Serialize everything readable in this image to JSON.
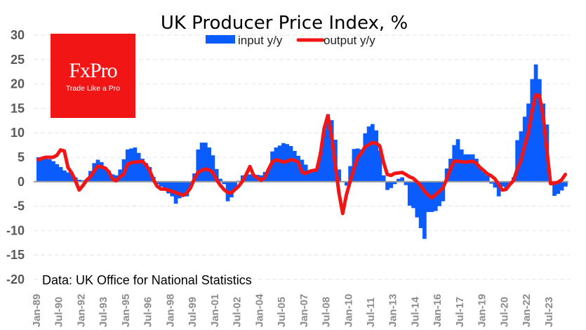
{
  "chart_data": {
    "type": "bar+line",
    "title": "UK Producer Price Index, %",
    "source_note": "Data: UK Office for National Statistics",
    "ylim": [
      -20,
      30
    ],
    "yticks": [
      30,
      25,
      20,
      15,
      10,
      5,
      0,
      -5,
      -10,
      -15,
      -20
    ],
    "xtick_labels": [
      "Jan-89",
      "Jul-90",
      "Jan-92",
      "Jul-93",
      "Jan-95",
      "Jul-96",
      "Jan-98",
      "Jul-99",
      "Jan-01",
      "Jul-02",
      "Jan-04",
      "Jul-05",
      "Jan-07",
      "Jul-08",
      "Jan-10",
      "Jul-11",
      "Jan-13",
      "Jul-14",
      "Jan-16",
      "Jul-17",
      "Jan-19",
      "Jul-20",
      "Jan-22",
      "Jul-23"
    ],
    "grid": true,
    "legend_position": "top-center",
    "x": [
      "1989Q1",
      "1989Q2",
      "1989Q3",
      "1989Q4",
      "1990Q1",
      "1990Q2",
      "1990Q3",
      "1990Q4",
      "1991Q1",
      "1991Q2",
      "1991Q3",
      "1991Q4",
      "1992Q1",
      "1992Q2",
      "1992Q3",
      "1992Q4",
      "1993Q1",
      "1993Q2",
      "1993Q3",
      "1993Q4",
      "1994Q1",
      "1994Q2",
      "1994Q3",
      "1994Q4",
      "1995Q1",
      "1995Q2",
      "1995Q3",
      "1995Q4",
      "1996Q1",
      "1996Q2",
      "1996Q3",
      "1996Q4",
      "1997Q1",
      "1997Q2",
      "1997Q3",
      "1997Q4",
      "1998Q1",
      "1998Q2",
      "1998Q3",
      "1998Q4",
      "1999Q1",
      "1999Q2",
      "1999Q3",
      "1999Q4",
      "2000Q1",
      "2000Q2",
      "2000Q3",
      "2000Q4",
      "2001Q1",
      "2001Q2",
      "2001Q3",
      "2001Q4",
      "2002Q1",
      "2002Q2",
      "2002Q3",
      "2002Q4",
      "2003Q1",
      "2003Q2",
      "2003Q3",
      "2003Q4",
      "2004Q1",
      "2004Q2",
      "2004Q3",
      "2004Q4",
      "2005Q1",
      "2005Q2",
      "2005Q3",
      "2005Q4",
      "2006Q1",
      "2006Q2",
      "2006Q3",
      "2006Q4",
      "2007Q1",
      "2007Q2",
      "2007Q3",
      "2007Q4",
      "2008Q1",
      "2008Q2",
      "2008Q3",
      "2008Q4",
      "2009Q1",
      "2009Q2",
      "2009Q3",
      "2009Q4",
      "2010Q1",
      "2010Q2",
      "2010Q3",
      "2010Q4",
      "2011Q1",
      "2011Q2",
      "2011Q3",
      "2011Q4",
      "2012Q1",
      "2012Q2",
      "2012Q3",
      "2012Q4",
      "2013Q1",
      "2013Q2",
      "2013Q3",
      "2013Q4",
      "2014Q1",
      "2014Q2",
      "2014Q3",
      "2014Q4",
      "2015Q1",
      "2015Q2",
      "2015Q3",
      "2015Q4",
      "2016Q1",
      "2016Q2",
      "2016Q3",
      "2016Q4",
      "2017Q1",
      "2017Q2",
      "2017Q3",
      "2017Q4",
      "2018Q1",
      "2018Q2",
      "2018Q3",
      "2018Q4",
      "2019Q1",
      "2019Q2",
      "2019Q3",
      "2019Q4",
      "2020Q1",
      "2020Q2",
      "2020Q3",
      "2020Q4",
      "2021Q1",
      "2021Q2",
      "2021Q3",
      "2021Q4",
      "2022Q1",
      "2022Q2",
      "2022Q3",
      "2022Q4",
      "2023Q1",
      "2023Q2",
      "2023Q3",
      "2023Q4",
      "2024Q1",
      "2024Q2",
      "2024Q3"
    ],
    "series": [
      {
        "name": "input y/y",
        "type": "bar",
        "color": "#0a5cff",
        "values": [
          5,
          5,
          5,
          4.6,
          4.2,
          3.6,
          3,
          2.3,
          1.9,
          1.6,
          0.9,
          0.4,
          0.3,
          0.5,
          2.2,
          3.8,
          4.5,
          4,
          3,
          2.2,
          1.5,
          1.3,
          2.5,
          4.6,
          6.6,
          6.8,
          7,
          5.9,
          4.7,
          3.8,
          3,
          1,
          -0.5,
          -1,
          -1.8,
          -2.4,
          -3,
          -4.5,
          -3.4,
          -3,
          -3,
          -1.1,
          1.7,
          6.6,
          8,
          8,
          7,
          5.4,
          2.6,
          0.6,
          -0.5,
          -4,
          -3.2,
          -1.6,
          0.2,
          1.3,
          1.4,
          1.5,
          1.5,
          1.4,
          1.3,
          2,
          2.7,
          6.2,
          7,
          7.4,
          7.9,
          7.7,
          7.3,
          6.3,
          5.3,
          4.5,
          3.5,
          2,
          2.2,
          2.5,
          6,
          10.6,
          13.8,
          12.6,
          8.6,
          2.5,
          0,
          -0.8,
          3.2,
          6.7,
          6.8,
          6.6,
          9.9,
          11.3,
          11.8,
          10.5,
          6.4,
          1.3,
          -1.7,
          -1.3,
          -0.5,
          0.6,
          0.9,
          -0.7,
          -4.9,
          -5.4,
          -7.3,
          -9.5,
          -11.7,
          -6.2,
          -6.2,
          -6,
          -5,
          -4,
          2.7,
          4.7,
          7.5,
          8.7,
          6.6,
          5.6,
          5.6,
          5.6,
          4.7,
          2.7,
          2,
          1.3,
          -0.4,
          -1.2,
          -3,
          -1,
          -1.5,
          -0.4,
          0.9,
          8.5,
          10.3,
          13.3,
          16,
          21,
          24,
          21,
          16,
          11.7,
          0,
          -2.9,
          -2.5,
          -1.8,
          -1
        ]
      },
      {
        "name": "output y/y",
        "type": "line",
        "color": "#f21515",
        "values": [
          4.5,
          4.8,
          5,
          5,
          5,
          5.4,
          6.5,
          6.3,
          2.9,
          1.8,
          0.2,
          -1.7,
          -0.8,
          0.3,
          1,
          2.1,
          3.2,
          3,
          2.8,
          2,
          0.5,
          0.2,
          1,
          1.5,
          3.5,
          3.9,
          4,
          4.1,
          4.2,
          3.4,
          2.3,
          0.4,
          -0.9,
          -1.5,
          -1.5,
          -1.7,
          -2,
          -2.2,
          -2.5,
          -2.8,
          -2.3,
          -1.3,
          0.5,
          1.9,
          2.3,
          2.6,
          2.4,
          1.9,
          0.4,
          -0.7,
          -1.6,
          -2.2,
          -2.3,
          -1.6,
          -0.9,
          0.1,
          1.5,
          3.1,
          1.3,
          0.8,
          0.3,
          0.8,
          2.5,
          4,
          4.5,
          4.3,
          4,
          4.2,
          4.5,
          4.4,
          4,
          2,
          1.7,
          2.1,
          2.3,
          2.4,
          5.7,
          10.9,
          13.5,
          9.5,
          3.5,
          -2.3,
          -6.5,
          -2.7,
          0,
          2.5,
          4.9,
          5.8,
          7.1,
          7.6,
          8,
          7.9,
          7.3,
          4,
          1.5,
          1.3,
          1.7,
          1.8,
          1.9,
          1.5,
          1,
          0.7,
          0,
          -0.8,
          -1.9,
          -2.7,
          -3.3,
          -2.7,
          -2,
          -1.3,
          0.5,
          2.5,
          4.2,
          4.2,
          4.1,
          4,
          4.1,
          4.2,
          3.8,
          2.9,
          2.3,
          1.6,
          1.2,
          0.6,
          -0.5,
          -1.7,
          -1.6,
          -0.6,
          0.2,
          2.5,
          4.3,
          7.3,
          9.9,
          14.2,
          17.8,
          17.6,
          13.6,
          6.5,
          -0.4,
          -0.3,
          -0.1,
          0.4,
          1.5
        ]
      }
    ]
  },
  "logo": {
    "brand": "FxPro",
    "tagline": "Trade Like a Pro",
    "color": "#f21515"
  }
}
